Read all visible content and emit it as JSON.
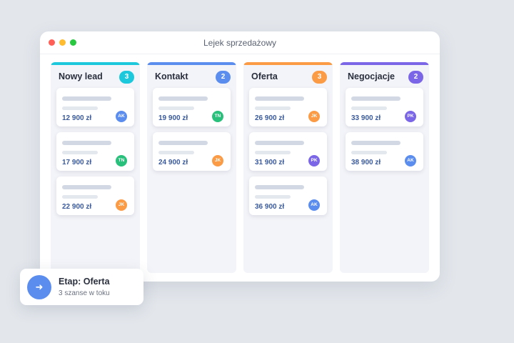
{
  "window": {
    "title": "Lejek sprzedażowy"
  },
  "columns": [
    {
      "title": "Nowy lead",
      "count": "3",
      "color": "#1cc8dc",
      "cards": [
        {
          "amount": "12 900 zł",
          "owner": "AK"
        },
        {
          "amount": "17 900 zł",
          "owner": "TN"
        },
        {
          "amount": "22 900 zł",
          "owner": "JK"
        }
      ]
    },
    {
      "title": "Kontakt",
      "count": "2",
      "color": "#5b8def",
      "cards": [
        {
          "amount": "19 900 zł",
          "owner": "TN"
        },
        {
          "amount": "24 900 zł",
          "owner": "JK"
        }
      ]
    },
    {
      "title": "Oferta",
      "count": "3",
      "color": "#fb9b46",
      "cards": [
        {
          "amount": "26 900 zł",
          "owner": "JK"
        },
        {
          "amount": "31 900 zł",
          "owner": "PK"
        },
        {
          "amount": "36 900 zł",
          "owner": "AK"
        }
      ]
    },
    {
      "title": "Negocjacje",
      "count": "2",
      "color": "#7b66e8",
      "cards": [
        {
          "amount": "33 900 zł",
          "owner": "PK"
        },
        {
          "amount": "38 900 zł",
          "owner": "AK"
        }
      ]
    }
  ],
  "avatar_colors": {
    "AK": "#5b8def",
    "TN": "#28c07a",
    "JK": "#fb9b46",
    "PK": "#7b66e8"
  },
  "toast": {
    "icon": "arrow-right-icon",
    "title": "Etap: Oferta",
    "subtitle": "3 szanse w toku"
  }
}
